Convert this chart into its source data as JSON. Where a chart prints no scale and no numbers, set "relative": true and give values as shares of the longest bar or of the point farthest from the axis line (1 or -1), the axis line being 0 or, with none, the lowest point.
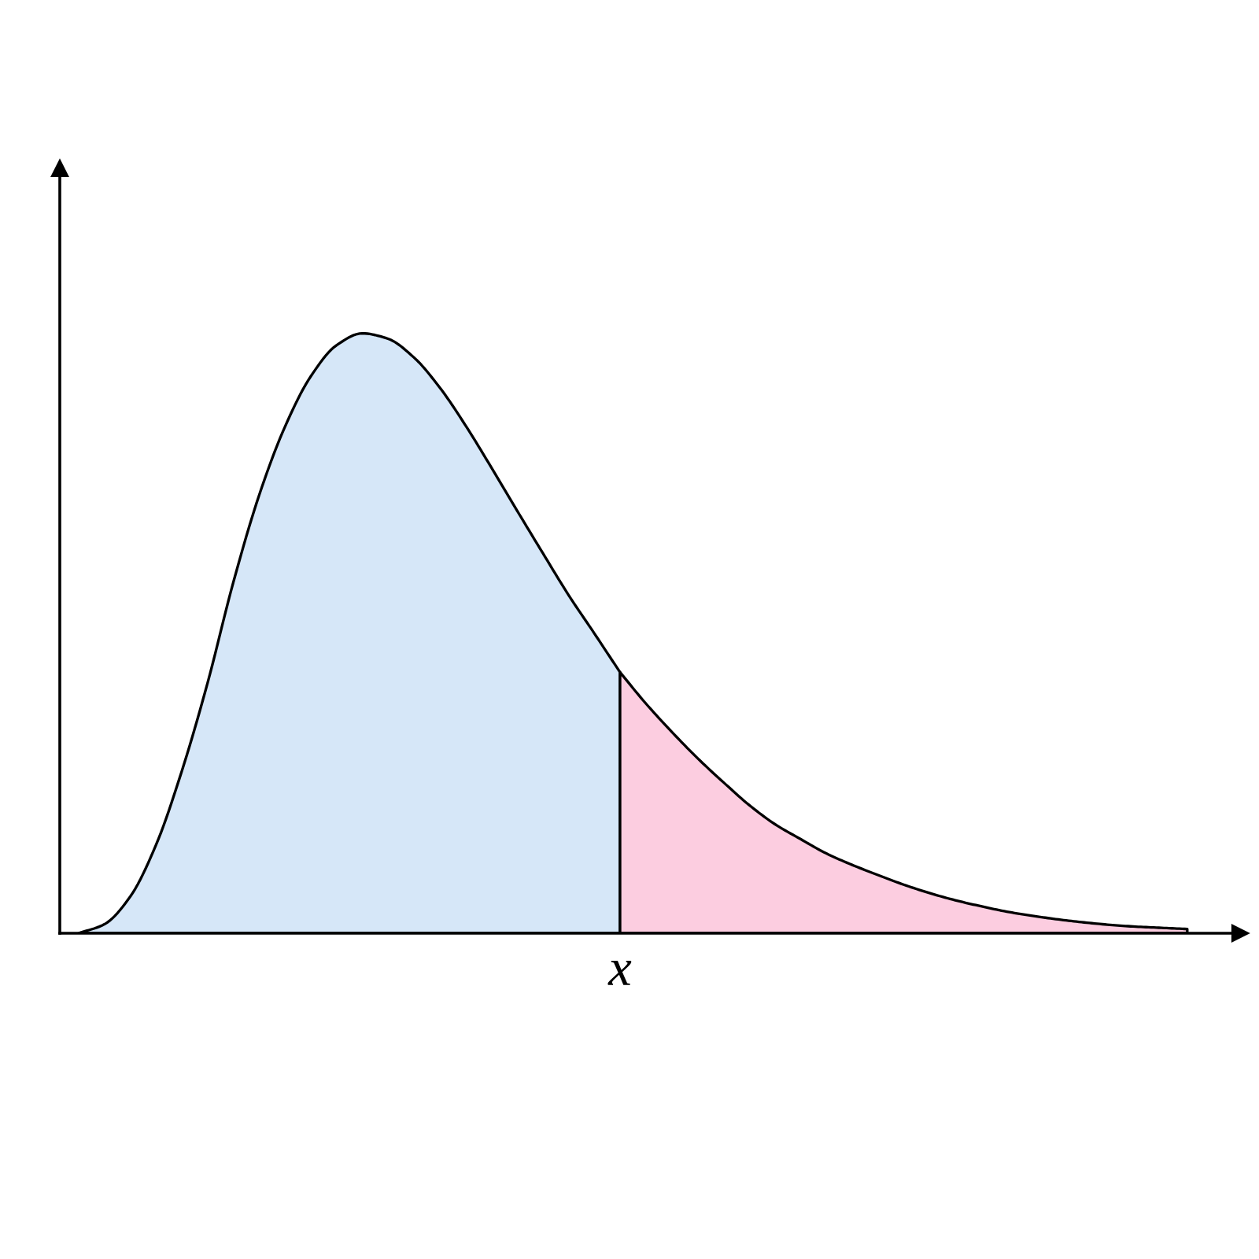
{
  "chart_data": {
    "type": "area",
    "relative": true,
    "annotations": [
      "x"
    ],
    "categories": [
      null,
      null,
      null,
      null,
      null,
      null,
      null,
      null,
      null,
      null,
      null,
      null,
      null,
      null,
      null,
      null,
      null,
      null,
      null,
      null,
      null,
      null,
      null,
      null,
      null,
      null,
      null,
      null,
      null,
      null,
      null,
      null,
      null,
      null,
      null,
      null,
      null,
      null,
      null,
      null,
      null,
      null,
      null,
      null
    ],
    "series": [
      {
        "color": "#d6e7f8",
        "values": [
          0,
          0.015,
          0.061,
          0.147,
          0.27,
          0.417,
          0.585,
          0.73,
          0.844,
          0.928,
          0.98,
          1,
          0.991,
          0.96,
          0.91,
          0.847,
          0.777,
          0.705,
          0.634,
          0.564,
          0.5,
          0.435,
          null,
          null,
          null,
          null,
          null,
          null,
          null,
          null,
          null,
          null,
          null,
          null,
          null,
          null,
          null,
          null,
          null,
          null,
          null,
          null,
          null,
          null
        ]
      },
      {
        "color": "#fccde0",
        "values": [
          null,
          null,
          null,
          null,
          null,
          null,
          null,
          null,
          null,
          null,
          null,
          null,
          null,
          null,
          null,
          null,
          null,
          null,
          null,
          null,
          null,
          0.435,
          0.383,
          0.336,
          0.292,
          0.252,
          0.214,
          0.182,
          0.157,
          0.133,
          0.114,
          0.097,
          0.081,
          0.067,
          0.055,
          0.045,
          0.036,
          0.029,
          0.023,
          0.018,
          0.014,
          0.011,
          0.009,
          0.007
        ]
      }
    ]
  }
}
